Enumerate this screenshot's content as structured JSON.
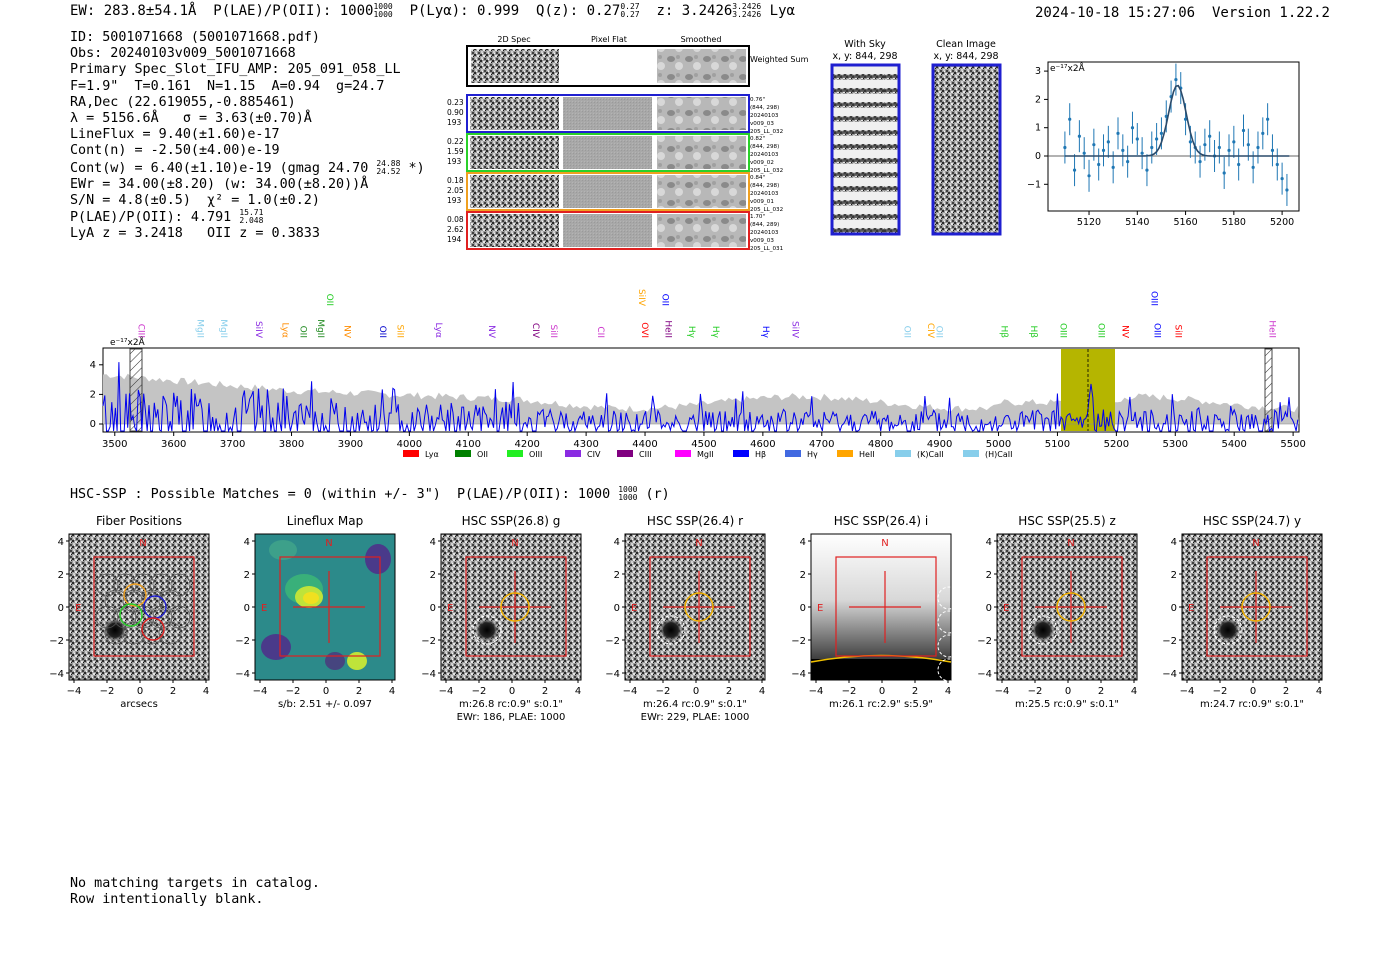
{
  "header": {
    "ew": "EW: 283.8±54.1Å",
    "plae_label": "P(LAE)/P(OII): 1000",
    "plae_hi": "1000",
    "plae_lo": "1000",
    "plya": "P(Lyα): 0.999",
    "qz_label": "Q(z): 0.27",
    "qz_hi": "0.27",
    "qz_lo": "0.27",
    "z_label": "z: 3.2426",
    "z_hi": "3.2426",
    "z_lo": "3.2426",
    "line": "Lyα",
    "timestamp": "2024-10-18 15:27:06",
    "version": "Version 1.22.2"
  },
  "info_lines": [
    "ID: 5001071668 (5001071668.pdf)",
    "Obs: 20240103v009_5001071668",
    "Primary Spec_Slot_IFU_AMP: 205_091_058_LL",
    "F=1.9\"  T=0.161  N=1.15  A=0.94  g=24.7",
    "RA,Dec (22.619055,-0.885461)",
    "λ = 5156.6Å   σ = 3.63(±0.70)Å",
    "LineFlux = 9.40(±1.60)e-17",
    "Cont(n) = -2.50(±4.00)e-19"
  ],
  "cont_w": {
    "text": "Cont(w) = 6.40(±1.10)e-19 (gmag 24.70",
    "hi": "24.88",
    "lo": "24.52",
    "tail": "*)"
  },
  "info_lines2": [
    "EWr = 34.00(±8.20) (w: 34.00(±8.20))Å",
    "S/N = 4.8(±0.5)  χ² = 1.0(±0.2)"
  ],
  "plae_line": {
    "text": "P(LAE)/P(OII): 4.791",
    "hi": "15.71",
    "lo": "2.048"
  },
  "z_line": "LyA z = 3.2418   OII z = 0.3833",
  "cutouts": {
    "col_titles": [
      "2D Spec",
      "Pixel Flat",
      "Smoothed"
    ],
    "weighted": "Weighted Sum",
    "rows": [
      {
        "left": [
          "0.23",
          "0.90",
          "193"
        ],
        "right": [
          "0.76\"",
          "(844, 298)",
          "20240103",
          "v009_03",
          "205_LL_032"
        ],
        "color": "#1f1fd0"
      },
      {
        "left": [
          "0.22",
          "1.59",
          "193"
        ],
        "right": [
          "0.82\"",
          "(844, 298)",
          "20240103",
          "v009_02",
          "205_LL_032"
        ],
        "color": "#2ad02a"
      },
      {
        "left": [
          "0.18",
          "2.05",
          "193"
        ],
        "right": [
          "0.84\"",
          "(844, 298)",
          "20240103",
          "v009_01",
          "205_LL_032"
        ],
        "color": "#f0a020"
      },
      {
        "left": [
          "0.08",
          "2.62",
          "194"
        ],
        "right": [
          "1.70\"",
          "(844, 289)",
          "20240103",
          "v009_03",
          "205_LL_031"
        ],
        "color": "#e02020"
      }
    ]
  },
  "sky": {
    "title1": "With Sky",
    "title1b": "x, y: 844, 298",
    "title2": "Clean Image",
    "title2b": "x, y: 844, 298"
  },
  "zoom_plot": {
    "ylabel": "e⁻¹⁷x2Å",
    "x_ticks": [
      "5120",
      "5140",
      "5160",
      "5180",
      "5200"
    ],
    "y_ticks": [
      "3",
      "2",
      "1",
      "0",
      "-1"
    ]
  },
  "spectrum": {
    "ylabel": "e⁻¹⁷x2Å",
    "x_ticks": [
      "3500",
      "3600",
      "3700",
      "3800",
      "3900",
      "4000",
      "4100",
      "4200",
      "4300",
      "4400",
      "4500",
      "4600",
      "4700",
      "4800",
      "4900",
      "5000",
      "5100",
      "5200",
      "5300",
      "5400",
      "5500"
    ],
    "y_ticks": [
      "4",
      "2",
      "0"
    ],
    "line_labels": [
      {
        "t": "CIII",
        "c": "#cc33cc"
      },
      {
        "t": "MgII",
        "c": "#87ceeb"
      },
      {
        "t": "MgII",
        "c": "#87ceeb"
      },
      {
        "t": "SiIV",
        "c": "#8a2be2"
      },
      {
        "t": "Lyα",
        "c": "#ff8c00"
      },
      {
        "t": "OII",
        "c": "#228b22"
      },
      {
        "t": "MgII",
        "c": "#228b22"
      },
      {
        "t": "OII",
        "c": "#22cc22"
      },
      {
        "t": "NV",
        "c": "#ff8c00"
      },
      {
        "t": "OII",
        "c": "#0000cc"
      },
      {
        "t": "SiII",
        "c": "#ffa500"
      },
      {
        "t": "Lyα",
        "c": "#8a2be2"
      },
      {
        "t": "NV",
        "c": "#8a2be2"
      },
      {
        "t": "CIV",
        "c": "#800080"
      },
      {
        "t": "SiII",
        "c": "#cc33cc"
      },
      {
        "t": "CII",
        "c": "#cc33cc"
      },
      {
        "t": "SiIV",
        "c": "#ffa500"
      },
      {
        "t": "OVI",
        "c": "#ff0000"
      },
      {
        "t": "OII",
        "c": "#0000ff"
      },
      {
        "t": "HeII",
        "c": "#800080"
      },
      {
        "t": "Hγ",
        "c": "#22cc22"
      },
      {
        "t": "Hγ",
        "c": "#22cc22"
      },
      {
        "t": "Hγ",
        "c": "#0000ff"
      },
      {
        "t": "SiIV",
        "c": "#8a2be2"
      },
      {
        "t": "OII",
        "c": "#87ceeb"
      },
      {
        "t": "CIV",
        "c": "#ffa500"
      },
      {
        "t": "OII",
        "c": "#87ceeb"
      },
      {
        "t": "Hβ",
        "c": "#22cc22"
      },
      {
        "t": "Hβ",
        "c": "#22cc22"
      },
      {
        "t": "OIII",
        "c": "#22cc22"
      },
      {
        "t": "OIII",
        "c": "#22cc22"
      },
      {
        "t": "NV",
        "c": "#ff0000"
      },
      {
        "t": "OIII",
        "c": "#0000ff"
      },
      {
        "t": "OIII",
        "c": "#0000ff"
      },
      {
        "t": "SiII",
        "c": "#ff0000"
      },
      {
        "t": "HeII",
        "c": "#cc33cc"
      }
    ],
    "legend": [
      {
        "t": "Lyα",
        "c": "#ff0000"
      },
      {
        "t": "OII",
        "c": "#008000"
      },
      {
        "t": "OIII",
        "c": "#22ee22"
      },
      {
        "t": "CIV",
        "c": "#8a2be2"
      },
      {
        "t": "CIII",
        "c": "#800080"
      },
      {
        "t": "MgII",
        "c": "#ff00ff"
      },
      {
        "t": "Hβ",
        "c": "#0000ff"
      },
      {
        "t": "Hγ",
        "c": "#4169e1"
      },
      {
        "t": "HeII",
        "c": "#ffa500"
      },
      {
        "t": "(K)CaII",
        "c": "#87ceeb"
      },
      {
        "t": "(H)CaII",
        "c": "#87ceeb"
      }
    ]
  },
  "hsc_title": {
    "text": "HSC-SSP : Possible Matches = 0 (within +/- 3\")  P(LAE)/P(OII): 1000",
    "hi": "1000",
    "lo": "1000",
    "tail": "(r)"
  },
  "panels": [
    {
      "title": "Fiber Positions",
      "cap1": "arcsecs",
      "cap2": ""
    },
    {
      "title": "Lineflux Map",
      "cap1": "s/b: 2.51 +/- 0.097",
      "cap2": ""
    },
    {
      "title": "HSC SSP(26.8) g",
      "cap1": "m:26.8 rc:0.9\"  s:0.1\"",
      "cap2": "EWr: 186, PLAE: 1000"
    },
    {
      "title": "HSC SSP(26.4) r",
      "cap1": "m:26.4 rc:0.9\"  s:0.1\"",
      "cap2": "EWr: 229, PLAE: 1000"
    },
    {
      "title": "HSC SSP(26.4) i",
      "cap1": "m:26.1  rc:2.9\"  s:5.9\"",
      "cap2": ""
    },
    {
      "title": "HSC SSP(25.5) z",
      "cap1": "m:25.5 rc:0.9\"  s:0.1\"",
      "cap2": ""
    },
    {
      "title": "HSC SSP(24.7) y",
      "cap1": "m:24.7 rc:0.9\"  s:0.1\"",
      "cap2": ""
    }
  ],
  "panel_axes": {
    "ticks": [
      "4",
      "2",
      "0",
      "−2",
      "−4"
    ],
    "xticks": [
      "−4",
      "−2",
      "0",
      "2",
      "4"
    ],
    "north": "N",
    "east": "E"
  },
  "footer": [
    "No matching targets in catalog.",
    "Row intentionally blank."
  ]
}
